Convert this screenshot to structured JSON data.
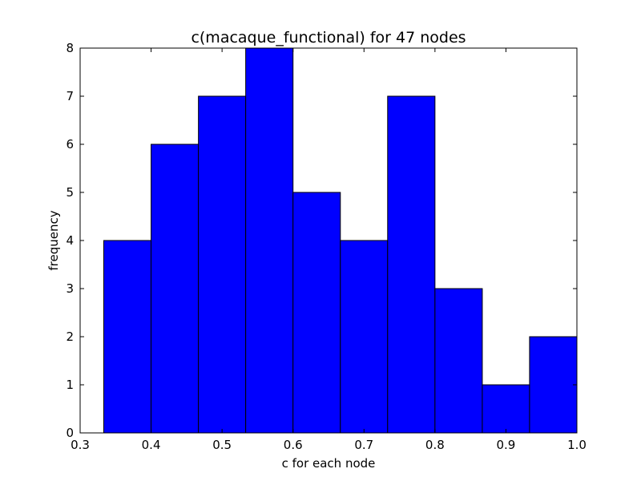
{
  "chart_data": {
    "type": "bar",
    "title": "c(macaque_functional) for 47 nodes",
    "xlabel": "c for each node",
    "ylabel": "frequency",
    "xlim": [
      0.3,
      1.0
    ],
    "ylim": [
      0,
      8
    ],
    "grid": false,
    "bar_color": "#0000ff",
    "bar_edge_color": "#000000",
    "x_ticks": [
      "0.3",
      "0.4",
      "0.5",
      "0.6",
      "0.7",
      "0.8",
      "0.9",
      "1.0"
    ],
    "y_ticks": [
      "0",
      "1",
      "2",
      "3",
      "4",
      "5",
      "6",
      "7",
      "8"
    ],
    "bins": [
      {
        "x0": 0.3333,
        "x1": 0.4,
        "count": 4
      },
      {
        "x0": 0.4,
        "x1": 0.4667,
        "count": 6
      },
      {
        "x0": 0.4667,
        "x1": 0.5333,
        "count": 7
      },
      {
        "x0": 0.5333,
        "x1": 0.6,
        "count": 8
      },
      {
        "x0": 0.6,
        "x1": 0.6667,
        "count": 5
      },
      {
        "x0": 0.6667,
        "x1": 0.7333,
        "count": 4
      },
      {
        "x0": 0.7333,
        "x1": 0.8,
        "count": 7
      },
      {
        "x0": 0.8,
        "x1": 0.8667,
        "count": 3
      },
      {
        "x0": 0.8667,
        "x1": 0.9333,
        "count": 1
      },
      {
        "x0": 0.9333,
        "x1": 1.0,
        "count": 2
      }
    ]
  }
}
